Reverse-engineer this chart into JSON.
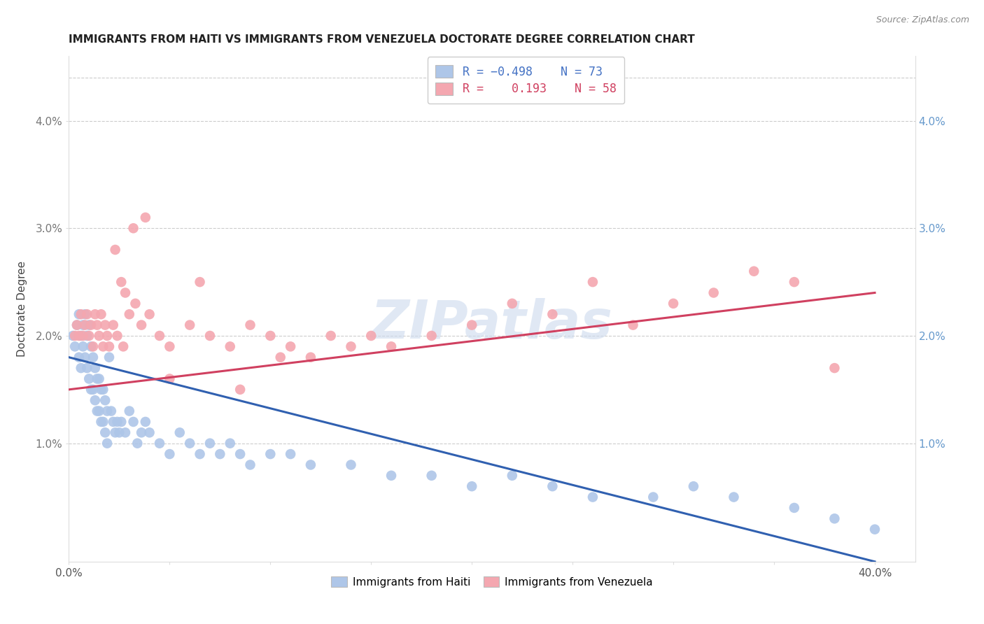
{
  "title": "IMMIGRANTS FROM HAITI VS IMMIGRANTS FROM VENEZUELA DOCTORATE DEGREE CORRELATION CHART",
  "source": "Source: ZipAtlas.com",
  "ylabel": "Doctorate Degree",
  "watermark": "ZIPatlas",
  "xlim": [
    0.0,
    0.42
  ],
  "ylim": [
    -0.001,
    0.046
  ],
  "color_haiti": "#aec6e8",
  "color_venezuela": "#f4a7b0",
  "line_color_haiti": "#3060b0",
  "line_color_venezuela": "#d04060",
  "haiti_trend_x": [
    0.0,
    0.4
  ],
  "haiti_trend_y": [
    0.018,
    -0.001
  ],
  "venezuela_trend_x": [
    0.0,
    0.4
  ],
  "venezuela_trend_y": [
    0.015,
    0.024
  ],
  "haiti_x": [
    0.002,
    0.003,
    0.004,
    0.005,
    0.005,
    0.006,
    0.006,
    0.007,
    0.007,
    0.008,
    0.008,
    0.009,
    0.009,
    0.01,
    0.01,
    0.011,
    0.011,
    0.012,
    0.012,
    0.013,
    0.013,
    0.014,
    0.014,
    0.015,
    0.015,
    0.016,
    0.016,
    0.017,
    0.017,
    0.018,
    0.018,
    0.019,
    0.019,
    0.02,
    0.021,
    0.022,
    0.023,
    0.024,
    0.025,
    0.026,
    0.028,
    0.03,
    0.032,
    0.034,
    0.036,
    0.038,
    0.04,
    0.045,
    0.05,
    0.055,
    0.06,
    0.065,
    0.07,
    0.075,
    0.08,
    0.085,
    0.09,
    0.1,
    0.11,
    0.12,
    0.14,
    0.16,
    0.18,
    0.2,
    0.22,
    0.24,
    0.26,
    0.29,
    0.31,
    0.33,
    0.36,
    0.38,
    0.4
  ],
  "haiti_y": [
    0.02,
    0.019,
    0.021,
    0.022,
    0.018,
    0.02,
    0.017,
    0.021,
    0.019,
    0.022,
    0.018,
    0.02,
    0.017,
    0.021,
    0.016,
    0.019,
    0.015,
    0.018,
    0.015,
    0.017,
    0.014,
    0.016,
    0.013,
    0.016,
    0.013,
    0.015,
    0.012,
    0.015,
    0.012,
    0.014,
    0.011,
    0.013,
    0.01,
    0.018,
    0.013,
    0.012,
    0.011,
    0.012,
    0.011,
    0.012,
    0.011,
    0.013,
    0.012,
    0.01,
    0.011,
    0.012,
    0.011,
    0.01,
    0.009,
    0.011,
    0.01,
    0.009,
    0.01,
    0.009,
    0.01,
    0.009,
    0.008,
    0.009,
    0.009,
    0.008,
    0.008,
    0.007,
    0.007,
    0.006,
    0.007,
    0.006,
    0.005,
    0.005,
    0.006,
    0.005,
    0.004,
    0.003,
    0.002
  ],
  "venezuela_x": [
    0.003,
    0.004,
    0.005,
    0.006,
    0.007,
    0.008,
    0.009,
    0.01,
    0.011,
    0.012,
    0.013,
    0.014,
    0.015,
    0.016,
    0.017,
    0.018,
    0.019,
    0.02,
    0.022,
    0.024,
    0.026,
    0.028,
    0.03,
    0.033,
    0.036,
    0.04,
    0.045,
    0.05,
    0.06,
    0.07,
    0.08,
    0.09,
    0.1,
    0.11,
    0.12,
    0.13,
    0.14,
    0.15,
    0.16,
    0.18,
    0.2,
    0.22,
    0.24,
    0.26,
    0.28,
    0.3,
    0.32,
    0.34,
    0.36,
    0.38,
    0.023,
    0.027,
    0.032,
    0.038,
    0.05,
    0.065,
    0.085,
    0.105
  ],
  "venezuela_y": [
    0.02,
    0.021,
    0.02,
    0.022,
    0.02,
    0.021,
    0.022,
    0.02,
    0.021,
    0.019,
    0.022,
    0.021,
    0.02,
    0.022,
    0.019,
    0.021,
    0.02,
    0.019,
    0.021,
    0.02,
    0.025,
    0.024,
    0.022,
    0.023,
    0.021,
    0.022,
    0.02,
    0.019,
    0.021,
    0.02,
    0.019,
    0.021,
    0.02,
    0.019,
    0.018,
    0.02,
    0.019,
    0.02,
    0.019,
    0.02,
    0.021,
    0.023,
    0.022,
    0.025,
    0.021,
    0.023,
    0.024,
    0.026,
    0.025,
    0.017,
    0.028,
    0.019,
    0.03,
    0.031,
    0.016,
    0.025,
    0.015,
    0.018
  ]
}
